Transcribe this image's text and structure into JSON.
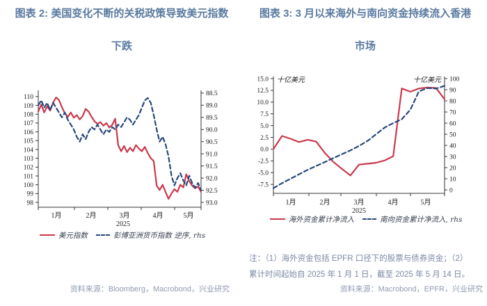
{
  "page": {
    "background": "#ffffff"
  },
  "colors": {
    "title": "#5a7aa0",
    "note": "#7b89a3",
    "source": "#8f9bb0",
    "legend_text": "#38404f",
    "red_line": "#c9394b",
    "navy_line": "#26477b",
    "axis": "#333333",
    "tick_label": "#1a1a1a"
  },
  "figures": [
    {
      "title_lines": [
        "图表 2: 美国变化不断的关税政策导致美元指数",
        "下跌"
      ],
      "legend": [
        {
          "label": "美元指数",
          "swatch": "solid-red"
        },
        {
          "label": "彭博亚洲货币指数 逆序, rhs",
          "swatch": "dashed-navy"
        }
      ],
      "source": "资料来源：Bloomberg，Macrobond，兴业研究"
    },
    {
      "title_lines": [
        "图表 3: 3 月以来海外与南向资金持续流入香港",
        "市场"
      ],
      "legend": [
        {
          "label": "海外资金累计净流入",
          "swatch": "solid-red"
        },
        {
          "label": "南向资金累计净流入, rhs",
          "swatch": "dashed-navy"
        }
      ],
      "notes": [
        "注：（1）海外资金包括 EPFR 口径下的股票与债券资金；（2）",
        "累计时间起始自 2025 年 1 月 1 日，截至 2025 年 5 月 14 日。"
      ],
      "source": "资料来源：Macrobond，EPFR，兴业研究"
    }
  ],
  "chart_data": [
    {
      "id": "usd-index-vs-asia-currency",
      "type": "line",
      "title": "美国变化不断的关税政策导致美元指数下跌",
      "x_range": [
        "2025-01-01",
        "2025-05-14"
      ],
      "x_tick_labels": [
        "1月",
        "2月",
        "3月",
        "4月",
        "5月"
      ],
      "x_axis_year": "2025",
      "grid": false,
      "left_axis": {
        "ylim": [
          98,
          110
        ],
        "tick_values": [
          110,
          109,
          108,
          107,
          106,
          105,
          104,
          103,
          102,
          101,
          100,
          99,
          98
        ],
        "tick_labels": [
          "110",
          "109",
          "108",
          "107",
          "106",
          "105",
          "104",
          "103",
          "102",
          "101",
          "100",
          "99",
          "98"
        ]
      },
      "right_axis": {
        "ylim": [
          88.5,
          93.0
        ],
        "inverted": true,
        "tick_values": [
          88.5,
          89.0,
          89.5,
          90.0,
          90.5,
          91.0,
          91.5,
          92.0,
          92.5,
          93.0
        ],
        "tick_labels": [
          "88.5",
          "89.0",
          "89.5",
          "90.0",
          "90.5",
          "91.0",
          "91.5",
          "92.0",
          "92.5",
          "93.0"
        ]
      },
      "series": [
        {
          "name": "美元指数",
          "axis": "left",
          "line": "solid",
          "color": "#c9394b",
          "values": [
            108.3,
            109.1,
            108.2,
            108.9,
            108.4,
            109.3,
            109.9,
            109.6,
            108.8,
            108.1,
            107.7,
            108.2,
            107.6,
            107.9,
            107.4,
            107.8,
            108.6,
            108.3,
            107.7,
            107.2,
            106.9,
            107.1,
            106.7,
            107.0,
            106.5,
            106.8,
            107.5,
            104.5,
            103.8,
            104.4,
            103.7,
            104.2,
            103.8,
            104.5,
            104.1,
            103.8,
            104.3,
            103.6,
            103.0,
            102.7,
            99.9,
            99.4,
            100.0,
            99.2,
            98.4,
            99.0,
            99.5,
            99.2,
            100.0,
            99.7,
            101.2,
            100.4,
            99.9,
            99.6,
            99.8,
            99.2
          ]
        },
        {
          "name": "彭博亚洲货币指数 逆序, rhs",
          "axis": "right",
          "line": "dashed",
          "color": "#26477b",
          "values": [
            89.0,
            88.8,
            89.1,
            88.9,
            89.2,
            88.9,
            89.1,
            89.3,
            89.5,
            89.3,
            89.6,
            89.8,
            90.0,
            90.3,
            90.5,
            90.2,
            90.4,
            90.1,
            89.9,
            90.0,
            89.8,
            90.0,
            90.2,
            90.0,
            90.1,
            89.9,
            90.0,
            89.8,
            89.9,
            89.7,
            89.5,
            89.6,
            89.8,
            89.6,
            89.4,
            89.1,
            88.8,
            88.7,
            88.9,
            89.4,
            90.0,
            90.5,
            90.3,
            90.6,
            91.1,
            91.9,
            92.3,
            92.0,
            91.8,
            92.1,
            92.3,
            91.9,
            92.2,
            92.4,
            92.2,
            92.5
          ]
        }
      ]
    },
    {
      "id": "overseas-southbound-flows",
      "type": "line",
      "title": "3 月以来海外与南向资金持续流入香港市场",
      "x_range": [
        "2025-01-01",
        "2025-05-14"
      ],
      "x_tick_labels": [
        "1月",
        "2月",
        "3月",
        "4月",
        "5月"
      ],
      "x_axis_year": "2025",
      "grid": false,
      "unit_left": "十亿美元",
      "unit_right": "十亿美元",
      "left_axis": {
        "ylim": [
          -7.5,
          15.0
        ],
        "tick_values": [
          15.0,
          12.5,
          10.0,
          7.5,
          5.0,
          2.5,
          0.0,
          -2.5,
          -5.0,
          -7.5
        ],
        "tick_labels": [
          "15.0",
          "12.5",
          "10.0",
          "7.5",
          "5.0",
          "2.5",
          "0.0",
          "-2.5",
          "-5.0",
          "-7.5"
        ]
      },
      "right_axis": {
        "ylim": [
          0,
          100
        ],
        "inverted": false,
        "tick_values": [
          100,
          90,
          80,
          70,
          60,
          50,
          40,
          30,
          20,
          10,
          0
        ],
        "tick_labels": [
          "100",
          "90",
          "80",
          "70",
          "60",
          "50",
          "40",
          "30",
          "20",
          "10",
          "0"
        ]
      },
      "series": [
        {
          "name": "海外资金累计净流入",
          "axis": "left",
          "line": "solid",
          "color": "#c9394b",
          "values": [
            0.0,
            2.8,
            2.2,
            1.5,
            2.0,
            1.6,
            -0.8,
            -2.7,
            -4.2,
            -5.6,
            -3.3,
            -3.1,
            -2.9,
            -2.4,
            -1.5,
            12.9,
            12.2,
            12.9,
            13.1,
            13.0,
            10.6
          ]
        },
        {
          "name": "南向资金累计净流入, rhs",
          "axis": "right",
          "line": "dashed",
          "color": "#26477b",
          "values": [
            1.5,
            6.0,
            10.0,
            14.0,
            18.0,
            21.5,
            25.0,
            28.5,
            32.0,
            35.5,
            39.5,
            44.0,
            50.0,
            56.0,
            60.0,
            63.5,
            72.0,
            88.5,
            91.5,
            91.0,
            93.5
          ]
        }
      ]
    }
  ]
}
